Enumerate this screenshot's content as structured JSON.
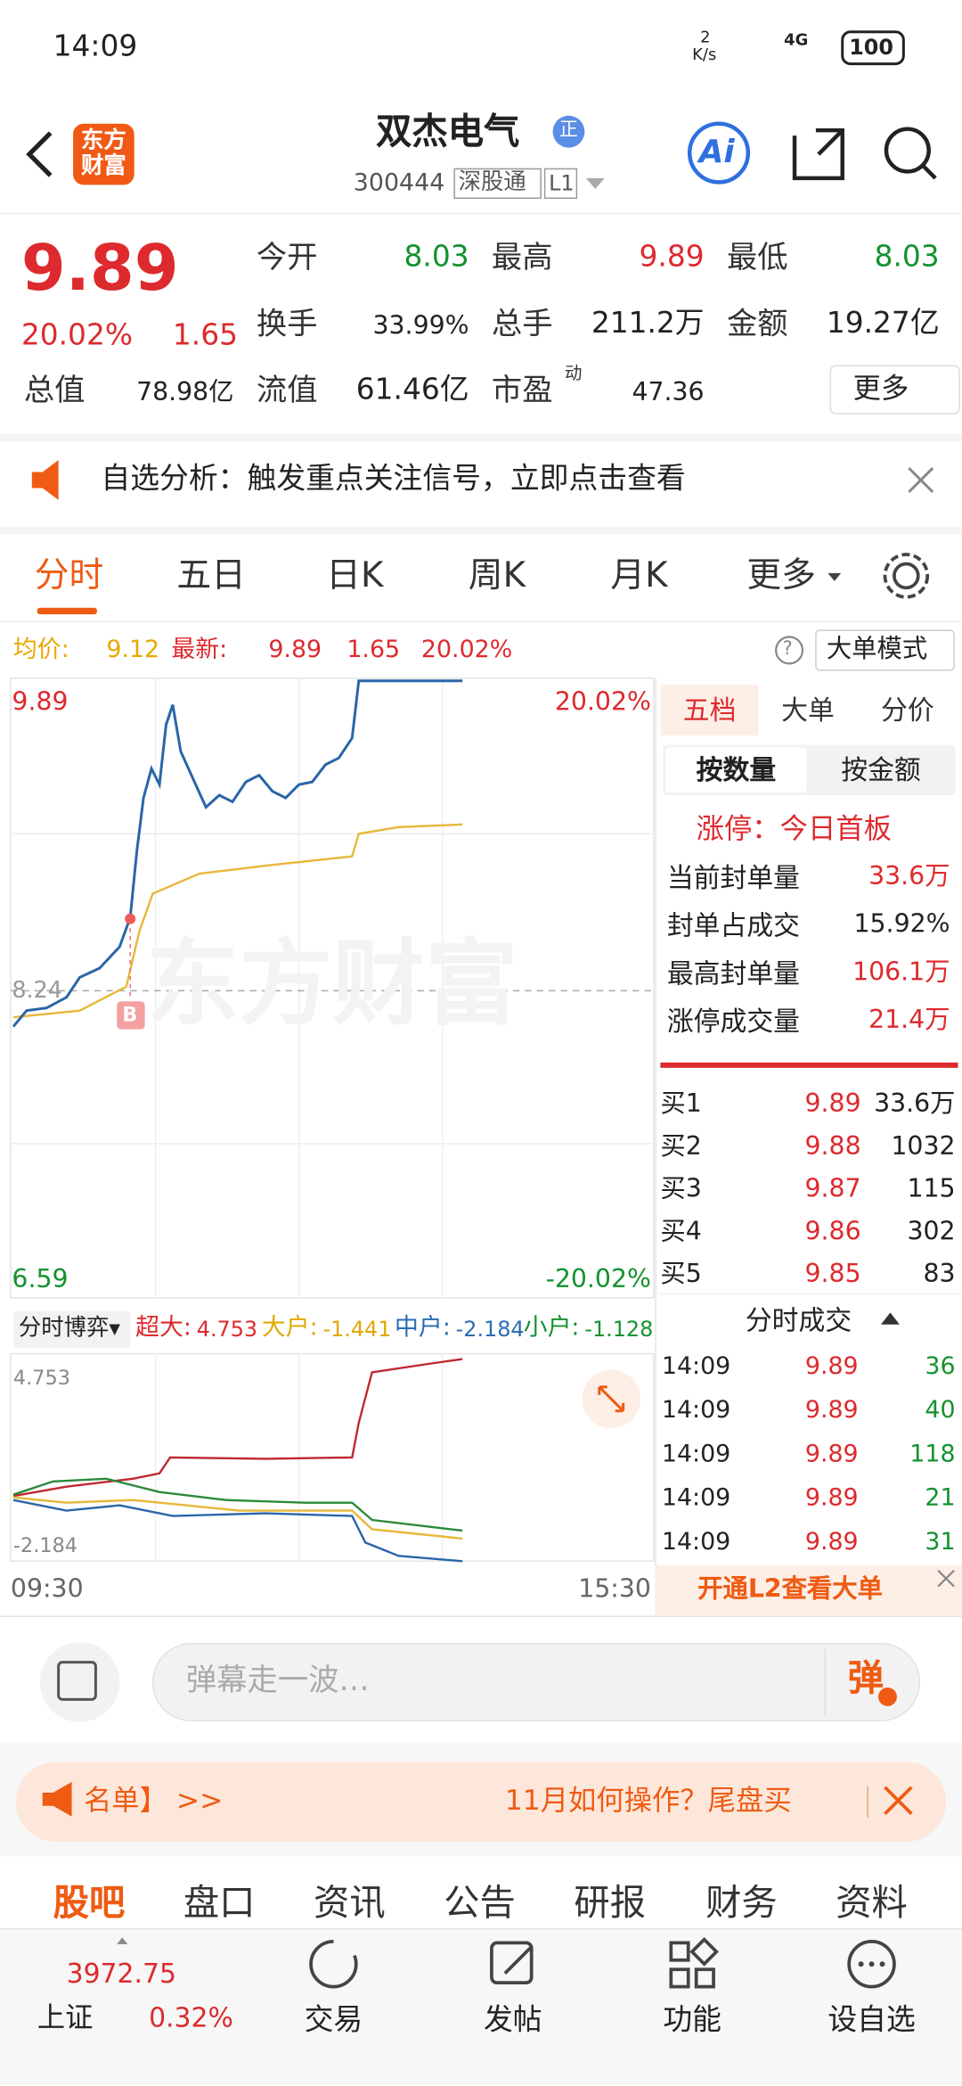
{
  "status": {
    "time": "14:09",
    "speed": "2",
    "speed_unit": "K/s",
    "network": "4G",
    "battery": "100"
  },
  "header": {
    "logo": "东方财富",
    "title": "双杰电气",
    "badge": "正",
    "code": "300444",
    "tag": "深股通",
    "level": "L1"
  },
  "quote": {
    "price": "9.89",
    "change_pct": "20.02%",
    "change": "1.65",
    "more": "更多",
    "fields": [
      {
        "label": "今开",
        "value": "8.03"
      },
      {
        "label": "最高",
        "value": "9.89"
      },
      {
        "label": "最低",
        "value": "8.03"
      },
      {
        "label": "换手",
        "value": "33.99%"
      },
      {
        "label": "总手",
        "value": "211.2万"
      },
      {
        "label": "金额",
        "value": "19.27亿"
      },
      {
        "label": "总值",
        "value": "78.98亿"
      },
      {
        "label": "流值",
        "value": "61.46亿"
      },
      {
        "label": "市盈",
        "sup": "动",
        "value": "47.36"
      }
    ]
  },
  "notice": "自选分析：触发重点关注信号，立即点击查看",
  "tabs": [
    "分时",
    "五日",
    "日K",
    "周K",
    "月K",
    "更多"
  ],
  "info": {
    "avg_label": "均价:",
    "avg": "9.12",
    "last_label": "最新:",
    "last": "9.89",
    "change": "1.65",
    "pct": "20.02%",
    "mode": "大单模式"
  },
  "chart": {
    "high": "9.89",
    "high_pct": "20.02%",
    "prev": "8.24",
    "low": "6.59",
    "low_pct": "-20.02%",
    "marker": "B",
    "watermark": "东方财富"
  },
  "flow": {
    "selector": "分时博弈",
    "items": [
      {
        "label": "超大:",
        "value": "4.753"
      },
      {
        "label": "大户:",
        "value": "-1.441"
      },
      {
        "label": "中户:",
        "value": "-2.184"
      },
      {
        "label": "小户:",
        "value": "-1.128"
      }
    ],
    "max": "4.753",
    "min": "-2.184",
    "start": "09:30",
    "end": "15:30"
  },
  "side": {
    "tabs": [
      "五档",
      "大单",
      "分价"
    ],
    "toggles": [
      "按数量",
      "按金额"
    ],
    "limit": "涨停：今日首板",
    "stats": [
      {
        "label": "当前封单量",
        "value": "33.6万"
      },
      {
        "label": "封单占成交",
        "value": "15.92%"
      },
      {
        "label": "最高封单量",
        "value": "106.1万"
      },
      {
        "label": "涨停成交量",
        "value": "21.4万"
      }
    ],
    "bids": [
      {
        "label": "买1",
        "price": "9.89",
        "volume": "33.6万"
      },
      {
        "label": "买2",
        "price": "9.88",
        "volume": "1032"
      },
      {
        "label": "买3",
        "price": "9.87",
        "volume": "115"
      },
      {
        "label": "买4",
        "price": "9.86",
        "volume": "302"
      },
      {
        "label": "买5",
        "price": "9.85",
        "volume": "83"
      }
    ],
    "trades_title": "分时成交",
    "trades": [
      {
        "time": "14:09",
        "price": "9.89",
        "volume": "36"
      },
      {
        "time": "14:09",
        "price": "9.89",
        "volume": "40"
      },
      {
        "time": "14:09",
        "price": "9.89",
        "volume": "118"
      },
      {
        "time": "14:09",
        "price": "9.89",
        "volume": "21"
      },
      {
        "time": "14:09",
        "price": "9.89",
        "volume": "31"
      }
    ],
    "l2": "开通L2查看大单"
  },
  "comment": {
    "placeholder": "弹幕走一波…",
    "button": "弹"
  },
  "banner": {
    "left": "名单】 >>",
    "right": "11月如何操作？尾盘买"
  },
  "bottom_tabs": [
    "股吧",
    "盘口",
    "资讯",
    "公告",
    "研报",
    "财务",
    "资料"
  ],
  "nav": {
    "index_value": "3972.75",
    "index_name": "上证",
    "index_pct": "0.32%",
    "items": [
      "交易",
      "发帖",
      "功能",
      "设自选"
    ]
  }
}
